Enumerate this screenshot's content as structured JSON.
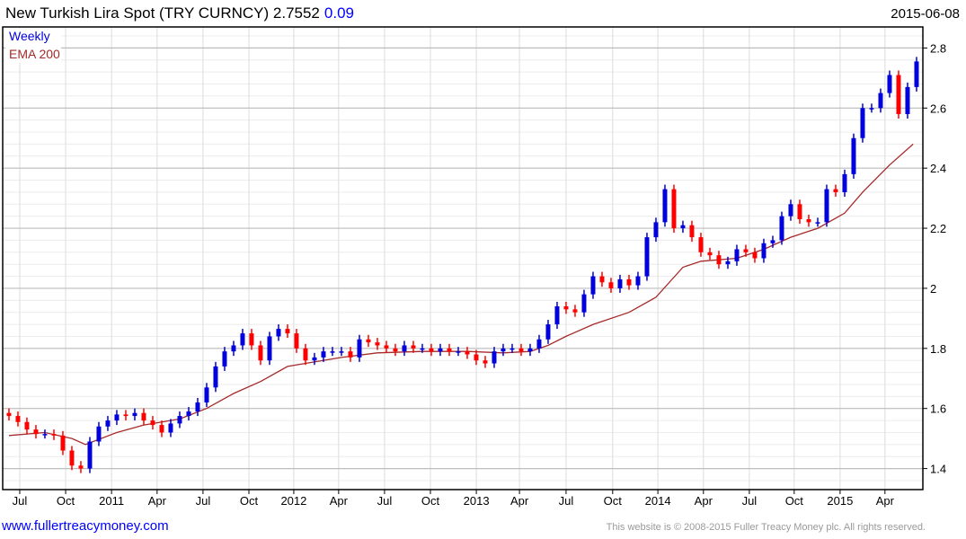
{
  "header": {
    "title": "New Turkish Lira Spot (TRY CURNCY) 2.7552",
    "change": "0.09",
    "date": "2015-06-08"
  },
  "legend": {
    "period": "Weekly",
    "indicator": "EMA 200"
  },
  "footer": {
    "site": "www.fullertreacymoney.com",
    "copyright": "This website is © 2008-2015 Fuller Treacy Money plc. All rights reserved."
  },
  "colors": {
    "up": "#0000dd",
    "down": "#ff0000",
    "ema": "#a52a2a",
    "title_change": "#0000ff"
  },
  "chart_data": {
    "type": "candlestick",
    "title": "New Turkish Lira Spot (TRY CURNCY)",
    "x_unit": "weeks since early Jun 2010",
    "xlim": [
      -1.8,
      262.8
    ],
    "ylim": [
      1.33,
      2.87
    ],
    "grid": true,
    "y_ticks": [
      "2.8",
      "2.6",
      "2.4",
      "2.2",
      "2",
      "1.8",
      "1.6",
      "1.4"
    ],
    "y_tick_values": [
      2.8,
      2.6,
      2.4,
      2.2,
      2.0,
      1.8,
      1.6,
      1.4
    ],
    "x_ticks": [
      {
        "label": "Jul",
        "week": 3.1
      },
      {
        "label": "Oct",
        "week": 16.3
      },
      {
        "label": "2011",
        "week": 29.5
      },
      {
        "label": "Apr",
        "week": 42.6
      },
      {
        "label": "Jul",
        "week": 55.8
      },
      {
        "label": "Oct",
        "week": 69.0
      },
      {
        "label": "2012",
        "week": 81.9
      },
      {
        "label": "Apr",
        "week": 94.8
      },
      {
        "label": "Jul",
        "week": 108.0
      },
      {
        "label": "Oct",
        "week": 121.2
      },
      {
        "label": "2013",
        "week": 134.4
      },
      {
        "label": "Apr",
        "week": 146.8
      },
      {
        "label": "Jul",
        "week": 160.2
      },
      {
        "label": "Oct",
        "week": 173.6
      },
      {
        "label": "2014",
        "week": 186.6
      },
      {
        "label": "Apr",
        "week": 199.7
      },
      {
        "label": "Jul",
        "week": 212.9
      },
      {
        "label": "Oct",
        "week": 225.8
      },
      {
        "label": "2015",
        "week": 239.0
      },
      {
        "label": "Apr",
        "week": 251.9
      }
    ],
    "price": {
      "name": "Weekly",
      "start_week": 0,
      "step_weeks": 2.584,
      "close": [
        1.575,
        1.555,
        1.53,
        1.515,
        1.515,
        1.51,
        1.46,
        1.41,
        1.4,
        1.49,
        1.54,
        1.56,
        1.58,
        1.575,
        1.585,
        1.56,
        1.545,
        1.52,
        1.55,
        1.575,
        1.59,
        1.62,
        1.67,
        1.74,
        1.79,
        1.81,
        1.85,
        1.81,
        1.76,
        1.84,
        1.865,
        1.85,
        1.8,
        1.76,
        1.77,
        1.79,
        1.79,
        1.79,
        1.77,
        1.83,
        1.82,
        1.81,
        1.8,
        1.79,
        1.81,
        1.8,
        1.8,
        1.79,
        1.8,
        1.79,
        1.79,
        1.78,
        1.76,
        1.75,
        1.79,
        1.8,
        1.8,
        1.79,
        1.8,
        1.83,
        1.88,
        1.94,
        1.93,
        1.92,
        1.98,
        2.04,
        2.02,
        2.0,
        2.03,
        2.01,
        2.04,
        2.17,
        2.22,
        2.33,
        2.2,
        2.21,
        2.17,
        2.12,
        2.11,
        2.08,
        2.09,
        2.13,
        2.12,
        2.1,
        2.15,
        2.16,
        2.24,
        2.28,
        2.23,
        2.22,
        2.22,
        2.33,
        2.32,
        2.38,
        2.5,
        2.6,
        2.6,
        2.65,
        2.71,
        2.58,
        2.67,
        2.7552
      ]
    },
    "ema": {
      "name": "EMA 200",
      "points": [
        [
          0,
          1.51
        ],
        [
          10.3,
          1.52
        ],
        [
          18.1,
          1.5
        ],
        [
          22,
          1.48
        ],
        [
          31,
          1.52
        ],
        [
          38.8,
          1.545
        ],
        [
          49.1,
          1.565
        ],
        [
          56.8,
          1.6
        ],
        [
          64.6,
          1.65
        ],
        [
          72.4,
          1.69
        ],
        [
          80.1,
          1.74
        ],
        [
          85.3,
          1.75
        ],
        [
          95.6,
          1.77
        ],
        [
          105.9,
          1.785
        ],
        [
          118.9,
          1.79
        ],
        [
          131.8,
          1.79
        ],
        [
          142.1,
          1.785
        ],
        [
          149.9,
          1.79
        ],
        [
          155,
          1.81
        ],
        [
          160.2,
          1.84
        ],
        [
          168,
          1.88
        ],
        [
          178.3,
          1.92
        ],
        [
          186,
          1.97
        ],
        [
          193.8,
          2.07
        ],
        [
          199,
          2.09
        ],
        [
          209.3,
          2.1
        ],
        [
          217.1,
          2.13
        ],
        [
          224.8,
          2.17
        ],
        [
          232.6,
          2.2
        ],
        [
          240.3,
          2.25
        ],
        [
          245.5,
          2.32
        ],
        [
          253.2,
          2.41
        ],
        [
          260,
          2.48
        ]
      ]
    }
  }
}
